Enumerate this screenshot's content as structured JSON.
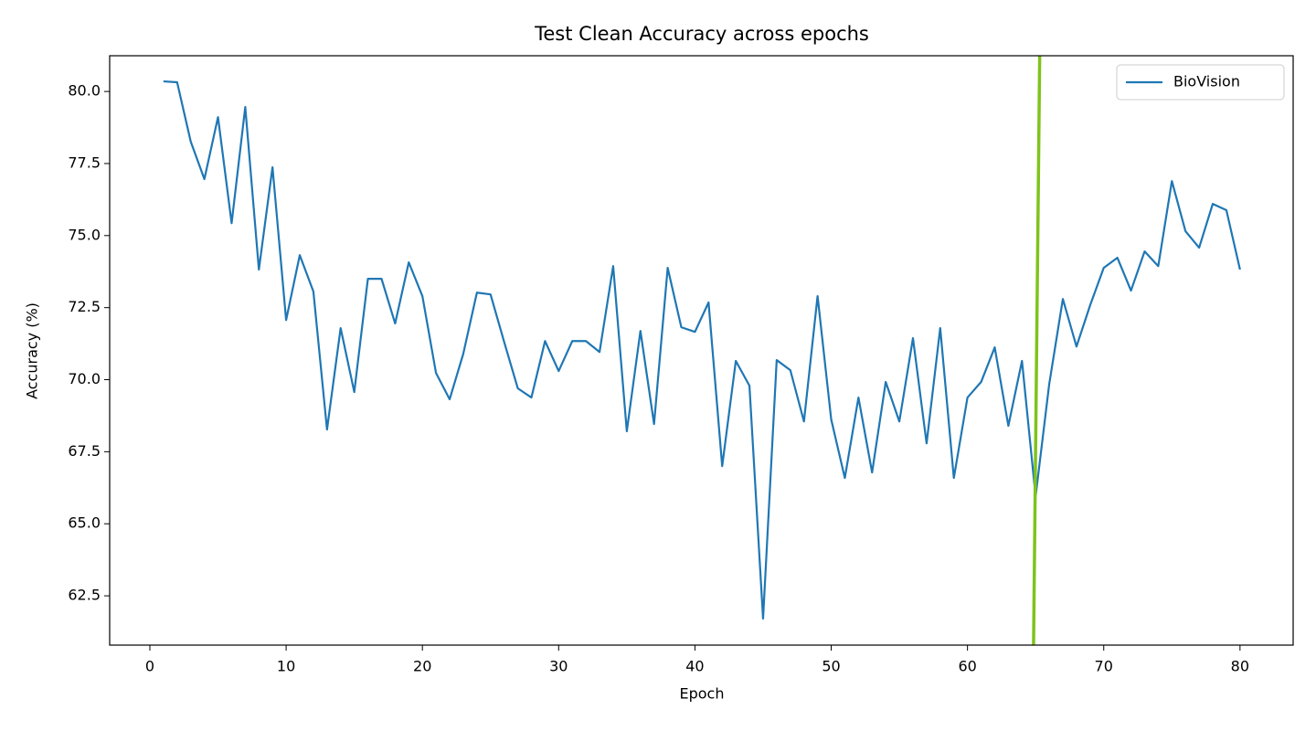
{
  "chart_data": {
    "type": "line",
    "title": "Test Clean Accuracy across epochs",
    "xlabel": "Epoch",
    "ylabel": "Accuracy (%)",
    "x": [
      1,
      2,
      3,
      4,
      5,
      6,
      7,
      8,
      9,
      10,
      11,
      12,
      13,
      14,
      15,
      16,
      17,
      18,
      19,
      20,
      21,
      22,
      23,
      24,
      25,
      26,
      27,
      28,
      29,
      30,
      31,
      32,
      33,
      34,
      35,
      36,
      37,
      38,
      39,
      40,
      41,
      42,
      43,
      44,
      45,
      46,
      47,
      48,
      49,
      50,
      51,
      52,
      53,
      54,
      55,
      56,
      57,
      58,
      59,
      60,
      61,
      62,
      63,
      64,
      65,
      66,
      67,
      68,
      69,
      70,
      71,
      72,
      73,
      74,
      75,
      76,
      77,
      78,
      79,
      80
    ],
    "series": [
      {
        "name": "BioVision",
        "color": "#1f77b4",
        "values": [
          80.35,
          80.32,
          78.26,
          76.96,
          79.11,
          75.43,
          79.46,
          73.82,
          77.37,
          72.07,
          74.32,
          73.06,
          68.27,
          71.79,
          69.57,
          73.5,
          73.5,
          71.95,
          74.07,
          72.9,
          70.23,
          69.32,
          70.9,
          73.02,
          72.96,
          71.31,
          69.7,
          69.38,
          71.34,
          70.3,
          71.34,
          71.34,
          70.96,
          73.94,
          68.21,
          71.69,
          68.46,
          73.88,
          71.82,
          71.66,
          72.68,
          67.0,
          70.65,
          69.79,
          61.71,
          70.68,
          70.33,
          68.55,
          72.9,
          68.62,
          66.59,
          69.38,
          66.78,
          69.92,
          68.55,
          71.44,
          67.79,
          71.79,
          66.59,
          69.38,
          69.92,
          71.12,
          68.4,
          70.65,
          65.95,
          69.85,
          72.8,
          71.15,
          72.58,
          73.88,
          74.23,
          73.09,
          74.45,
          73.94,
          76.89,
          75.15,
          74.58,
          76.1,
          75.88,
          73.82
        ]
      }
    ],
    "overlay": {
      "color": "#7fc31c",
      "x": [
        64.85,
        65.18,
        65.3
      ],
      "values": [
        60.79,
        75.8,
        81.24
      ]
    },
    "xlim": [
      -2.95,
      83.9
    ],
    "ylim": [
      60.79,
      81.24
    ],
    "xticks": [
      0,
      10,
      20,
      30,
      40,
      50,
      60,
      70,
      80
    ],
    "yticks": [
      62.5,
      {
        "value": 65,
        "label": "65.0"
      },
      67.5,
      {
        "value": 70,
        "label": "70.0"
      },
      72.5,
      {
        "value": 75,
        "label": "75.0"
      },
      77.5,
      {
        "value": 80,
        "label": "80.0"
      }
    ],
    "legend": "upper right",
    "grid": false
  }
}
